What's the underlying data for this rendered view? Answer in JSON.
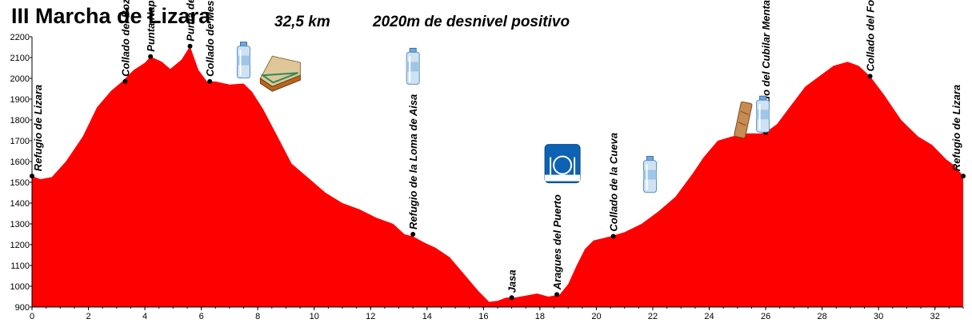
{
  "header": {
    "title": "III Marcha de Lizara",
    "distance": "32,5 km",
    "elevation_gain": "2020m de desnivel positivo"
  },
  "colors": {
    "fill": "#ff0000",
    "marker": "#000000",
    "background": "#ffffff"
  },
  "chart_data": {
    "type": "area",
    "title": "III Marcha de Lizara",
    "xlabel": "",
    "ylabel": "",
    "xlim": [
      0,
      33
    ],
    "ylim": [
      900,
      2200
    ],
    "x_ticks": [
      0,
      2,
      4,
      6,
      8,
      10,
      12,
      14,
      16,
      18,
      20,
      22,
      24,
      26,
      28,
      30,
      32
    ],
    "y_ticks": [
      900,
      1000,
      1100,
      1200,
      1300,
      1400,
      1500,
      1600,
      1700,
      1800,
      1900,
      2000,
      2100,
      2200
    ],
    "grid": false,
    "series": [
      {
        "x": [
          0,
          0.3,
          0.7,
          1.2,
          1.8,
          2.3,
          2.8,
          3.2,
          3.6,
          4.0,
          4.2,
          4.6,
          4.9,
          5.3,
          5.6,
          5.9,
          6.2,
          6.5,
          7.0,
          7.5,
          7.8,
          8.2,
          8.7,
          9.2,
          9.8,
          10.4,
          11.0,
          11.6,
          12.2,
          12.8,
          13.2,
          13.5,
          13.9,
          14.3,
          14.8,
          15.3,
          15.8,
          16.2,
          16.5,
          16.8,
          17.1,
          17.5,
          17.9,
          18.3,
          18.7,
          19.0,
          19.3,
          19.6,
          19.9,
          20.2,
          20.5,
          21.0,
          21.6,
          22.2,
          22.8,
          23.4,
          23.8,
          24.3,
          24.8,
          25.3,
          25.8,
          26.0,
          26.4,
          26.9,
          27.4,
          27.9,
          28.4,
          28.9,
          29.3,
          29.7,
          30.2,
          30.8,
          31.4,
          31.9,
          32.4,
          32.7,
          33.0
        ],
        "y": [
          1530,
          1515,
          1525,
          1600,
          1720,
          1860,
          1940,
          1985,
          2040,
          2075,
          2105,
          2080,
          2045,
          2090,
          2155,
          2040,
          1985,
          1985,
          1970,
          1975,
          1935,
          1850,
          1720,
          1590,
          1520,
          1450,
          1400,
          1370,
          1330,
          1300,
          1250,
          1240,
          1210,
          1185,
          1140,
          1060,
          980,
          925,
          930,
          945,
          945,
          955,
          965,
          950,
          960,
          1010,
          1100,
          1180,
          1220,
          1230,
          1240,
          1260,
          1300,
          1360,
          1430,
          1540,
          1620,
          1700,
          1720,
          1735,
          1735,
          1740,
          1780,
          1870,
          1960,
          2010,
          2060,
          2080,
          2060,
          2010,
          1920,
          1800,
          1720,
          1680,
          1610,
          1580,
          1530
        ]
      }
    ],
    "waypoints": [
      {
        "name": "Refugio de Lizara",
        "x": 0.0,
        "y": 1530
      },
      {
        "name": "Collado del Bozo",
        "x": 3.3,
        "y": 1985
      },
      {
        "name": "Punta Napazal",
        "x": 4.2,
        "y": 2105
      },
      {
        "name": "Punta de Mesola",
        "x": 5.6,
        "y": 2155
      },
      {
        "name": "Collado de Mesola",
        "x": 6.3,
        "y": 1985
      },
      {
        "name": "Refugio de la Loma de Aisa",
        "x": 13.5,
        "y": 1250
      },
      {
        "name": "Jasa",
        "x": 17.0,
        "y": 945
      },
      {
        "name": "Aragues del Puerto",
        "x": 18.6,
        "y": 960
      },
      {
        "name": "Collado de la Cueva",
        "x": 20.6,
        "y": 1240
      },
      {
        "name": "Collado del Cubilar Mentar",
        "x": 26.0,
        "y": 1740
      },
      {
        "name": "Collado del Foraton",
        "x": 29.7,
        "y": 2010
      },
      {
        "name": "Refugio de Lizara",
        "x": 33.0,
        "y": 1530
      }
    ],
    "icons": [
      {
        "name": "water-bottle-icon",
        "x": 7.5,
        "y": 2090
      },
      {
        "name": "sandwich-icon",
        "x": 8.8,
        "y": 2030
      },
      {
        "name": "water-bottle-icon",
        "x": 13.5,
        "y": 2060
      },
      {
        "name": "restaurant-icon",
        "x": 18.8,
        "y": 1590
      },
      {
        "name": "water-bottle-icon",
        "x": 21.9,
        "y": 1540
      },
      {
        "name": "energy-bar-icon",
        "x": 25.2,
        "y": 1800
      },
      {
        "name": "water-bottle-icon",
        "x": 25.9,
        "y": 1830
      }
    ]
  }
}
